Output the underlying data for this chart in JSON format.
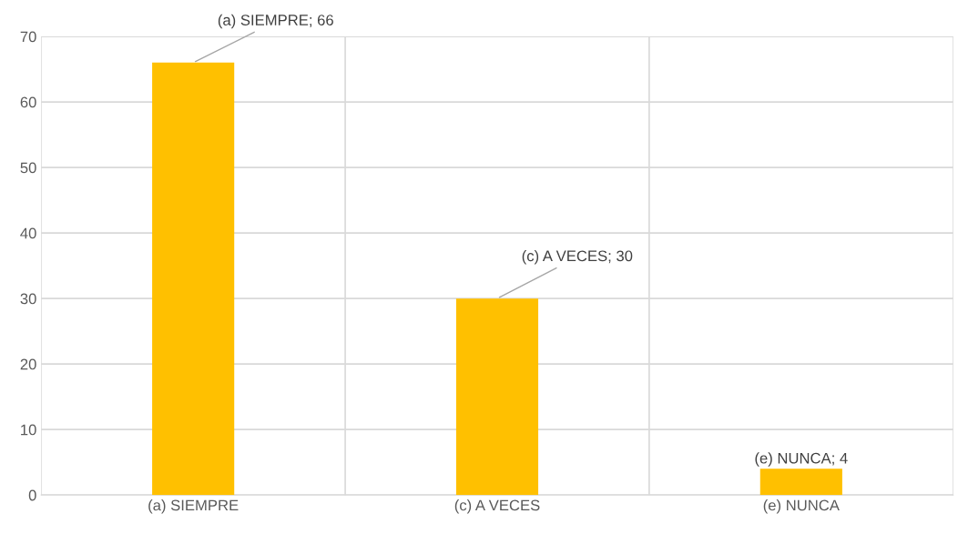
{
  "chart_data": {
    "type": "bar",
    "categories": [
      "(a) SIEMPRE",
      "(c) A VECES",
      "(e) NUNCA"
    ],
    "values": [
      66,
      30,
      4
    ],
    "value_labels": [
      "(a) SIEMPRE; 66",
      "(c) A VECES; 30",
      "(e) NUNCA; 4"
    ],
    "color": "#ffc000",
    "ylim": [
      0,
      70
    ],
    "yticks": [
      0,
      10,
      20,
      30,
      40,
      50,
      60,
      70
    ],
    "grid": true
  }
}
